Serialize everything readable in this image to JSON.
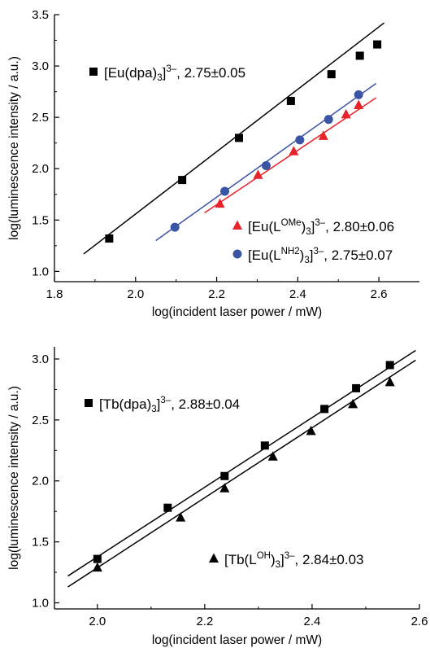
{
  "chart_data": [
    {
      "type": "scatter",
      "xlabel": "log(incident laser power / mW)",
      "ylabel": "log(luminescence intensity / a.u.)",
      "xlim": [
        1.8,
        2.7
      ],
      "ylim": [
        0.9,
        3.5
      ],
      "xticks": [
        1.8,
        2.0,
        2.2,
        2.4,
        2.6
      ],
      "yticks": [
        1.0,
        1.5,
        2.0,
        2.5,
        3.0,
        3.5
      ],
      "x_tick_labels": [
        "1.8",
        "2.0",
        "2.2",
        "2.4",
        "2.6"
      ],
      "y_tick_labels": [
        "1.0",
        "1.5",
        "2.0",
        "2.5",
        "3.0",
        "3.5"
      ],
      "series": [
        {
          "legend_pre": "[Eu(dpa)",
          "legend_sub": "3",
          "legend_mid": "]",
          "legend_sup": "3–",
          "legend_post": ", 2.75±0.05",
          "marker": "square",
          "color": "#000000",
          "line_color": "#000000",
          "legend_position": "upper-left",
          "points": [
            [
              1.935,
              1.32
            ],
            [
              2.115,
              1.89
            ],
            [
              2.255,
              2.3
            ],
            [
              2.383,
              2.66
            ],
            [
              2.483,
              2.92
            ],
            [
              2.553,
              3.1
            ],
            [
              2.596,
              3.21
            ]
          ],
          "fit_line": [
            [
              1.872,
              1.17
            ],
            [
              2.613,
              3.42
            ]
          ]
        },
        {
          "legend_pre": "[Eu(L",
          "legend_sup1": "OMe",
          "legend_mid": ")",
          "legend_sub": "3",
          "legend_mid2": "]",
          "legend_sup": "3–",
          "legend_post": ", 2.80±0.06",
          "marker": "triangle",
          "color": "#e8232a",
          "line_color": "#e8232a",
          "legend_position": "lower-right",
          "points": [
            [
              2.208,
              1.66
            ],
            [
              2.302,
              1.94
            ],
            [
              2.39,
              2.17
            ],
            [
              2.463,
              2.32
            ],
            [
              2.519,
              2.53
            ],
            [
              2.55,
              2.62
            ]
          ],
          "fit_line": [
            [
              2.17,
              1.57
            ],
            [
              2.593,
              2.69
            ]
          ]
        },
        {
          "legend_pre": "[Eu(L",
          "legend_sup1": "NH2",
          "legend_mid": ")",
          "legend_sub": "3",
          "legend_mid2": "]",
          "legend_sup": "3–",
          "legend_post": ", 2.75±0.07",
          "marker": "circle",
          "color": "#3a55a4",
          "line_color": "#3a55a4",
          "legend_position": "lower-right",
          "points": [
            [
              2.097,
              1.43
            ],
            [
              2.22,
              1.78
            ],
            [
              2.322,
              2.03
            ],
            [
              2.405,
              2.28
            ],
            [
              2.476,
              2.48
            ],
            [
              2.55,
              2.72
            ]
          ],
          "fit_line": [
            [
              2.05,
              1.3
            ],
            [
              2.593,
              2.83
            ]
          ]
        }
      ]
    },
    {
      "type": "scatter",
      "xlabel": "log(incident laser power / mW)",
      "ylabel": "log(luminescence intensity / a.u.)",
      "xlim": [
        1.92,
        2.6
      ],
      "ylim": [
        0.95,
        3.1
      ],
      "xticks": [
        2.0,
        2.2,
        2.4,
        2.6
      ],
      "yticks": [
        1.0,
        1.5,
        2.0,
        2.5,
        3.0
      ],
      "x_tick_labels": [
        "2.0",
        "2.2",
        "2.4",
        "2.6"
      ],
      "y_tick_labels": [
        "1.0",
        "1.5",
        "2.0",
        "2.5",
        "3.0"
      ],
      "series": [
        {
          "legend_pre": "[Tb(dpa)",
          "legend_sub": "3",
          "legend_mid": "]",
          "legend_sup": "3–",
          "legend_post": ", 2.88±0.04",
          "marker": "square",
          "color": "#000000",
          "line_color": "#000000",
          "legend_position": "upper-left",
          "points": [
            [
              2.0,
              1.36
            ],
            [
              2.131,
              1.78
            ],
            [
              2.237,
              2.04
            ],
            [
              2.312,
              2.29
            ],
            [
              2.423,
              2.59
            ],
            [
              2.482,
              2.76
            ],
            [
              2.545,
              2.95
            ]
          ],
          "fit_line": [
            [
              1.945,
              1.22
            ],
            [
              2.593,
              3.07
            ]
          ]
        },
        {
          "legend_pre": "[Tb(L",
          "legend_sup1": "OH",
          "legend_mid": ")",
          "legend_sub": "3",
          "legend_mid2": "]",
          "legend_sup": "3–",
          "legend_post": ", 2.84±0.03",
          "marker": "triangle",
          "color": "#000000",
          "line_color": "#000000",
          "legend_position": "lower-right",
          "points": [
            [
              2.0,
              1.29
            ],
            [
              2.155,
              1.7
            ],
            [
              2.237,
              1.94
            ],
            [
              2.327,
              2.2
            ],
            [
              2.398,
              2.41
            ],
            [
              2.476,
              2.63
            ],
            [
              2.545,
              2.81
            ]
          ],
          "fit_line": [
            [
              1.945,
              1.13
            ],
            [
              2.593,
              2.99
            ]
          ]
        }
      ]
    }
  ]
}
